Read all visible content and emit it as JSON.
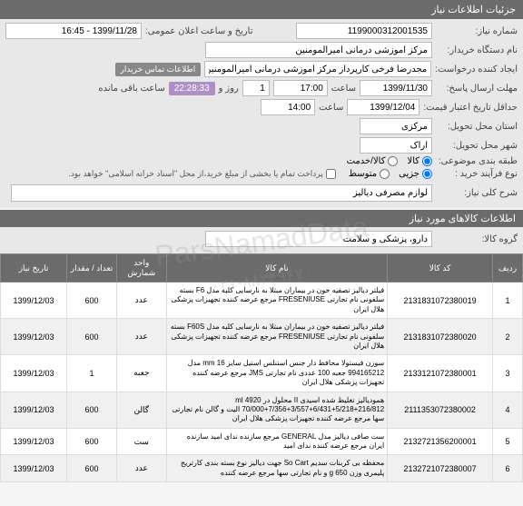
{
  "header": {
    "title": "جزئیات اطلاعات نیاز"
  },
  "form": {
    "req_no_label": "شماره نیاز:",
    "req_no": "1199000312001535",
    "announce_label": "تاریخ و ساعت اعلان عمومی:",
    "announce": "1399/11/28 - 16:45",
    "buyer_org_label": "نام دستگاه خریدار:",
    "buyer_org": "مرکز آموزشی درمانی امیرالمومنین",
    "creator_label": "ایجاد کننده درخواست:",
    "creator": "مجدرضا فرخی کارپرداز مرکز آموزشی درمانی امیرالمومنین",
    "info_btn": "اطلاعات تماس خریدار",
    "deadline_label": "مهلت ارسال پاسخ:",
    "deadline_to_label": "تا تاریخ:",
    "deadline_date": "1399/11/30",
    "deadline_time_label": "ساعت",
    "deadline_time": "17:00",
    "days_label": "روز و",
    "days": "1",
    "timer": "22:28:33",
    "remain_label": "ساعت باقی مانده",
    "validity_label": "حداقل تاریخ اعتبار قیمت:",
    "validity_to": "تا تاریخ:",
    "validity_date": "1399/12/04",
    "validity_time": "14:00",
    "province_label": "استان محل تحویل:",
    "province": "مرکزی",
    "city_label": "شهر محل تحویل:",
    "city": "اراک",
    "budget_cls_label": "طبقه بندی موضوعی:",
    "budget_opts": {
      "goods": "کالا",
      "service": "کالا/خدمت"
    },
    "proc_type_label": "نوع فرآیند خرید :",
    "proc_opts": {
      "low": "جزیی",
      "med": "متوسط"
    },
    "note": "پرداخت تمام یا بخشی از مبلغ خرید،از محل \"اسناد خزانه اسلامی\" خواهد بود.",
    "desc_label": "شرح کلی نیاز:",
    "desc": "لوازم مصرفی دیالیز"
  },
  "items_header": {
    "title": "اطلاعات کالاهای مورد نیاز"
  },
  "group": {
    "label": "گروه کالا:",
    "value": "دارو، پزشکی و سلامت"
  },
  "table": {
    "headers": {
      "idx": "ردیف",
      "code": "کد کالا",
      "name": "نام کالا",
      "unit": "واحد شمارش",
      "qty": "تعداد / مقدار",
      "date": "تاریخ نیاز"
    },
    "rows": [
      {
        "idx": "1",
        "code": "2131831072380019",
        "name": "فیلتر دیالیز تصفیه خون در بیماران مبتلا به نارسایی کلیه مدل F6 بسته سلفونی نام تجارتی FRESENIUSE مرجع عرضه کننده تجهیزات پزشکی هلال ایران",
        "unit": "عدد",
        "qty": "600",
        "date": "1399/12/03"
      },
      {
        "idx": "2",
        "code": "2131831072380020",
        "name": "فیلتر دیالیز تصفیه خون در بیماران مبتلا به نارسایی کلیه مدل F60S بسته سلفونی نام تجارتی FRESENIUSE مرجع عرضه کننده تجهیزات پزشکی هلال ایران",
        "unit": "عدد",
        "qty": "600",
        "date": "1399/12/03"
      },
      {
        "idx": "3",
        "code": "2133121072380001",
        "name": "سوزن فیستولا محافظ دار جنس استنلس استیل سایز mm 16 مدل 994165212 جعبه 100 عددی نام تجارتی JMS مرجع عرضه کننده تجهیزات پزشکی هلال ایران",
        "unit": "جعبه",
        "qty": "1",
        "date": "1399/12/03"
      },
      {
        "idx": "4",
        "code": "2111353072380002",
        "name": "همودیالیز تغلیظ شده اسیدی II محلول در ml 4920 70/000+7/356+3/557+6/431+5/218+216/812 الیت و گالن نام تجارتی سها مرجع عرضه کننده تجهیزات پزشکی هلال ایران",
        "unit": "گالن",
        "qty": "600",
        "date": "1399/12/03"
      },
      {
        "idx": "5",
        "code": "2132721356200001",
        "name": "ست صافی دیالیز مدل GENERAL مرجع سازنده ندای امید سازنده ایران مرجع عرضه کننده ندای امید",
        "unit": "ست",
        "qty": "600",
        "date": "1399/12/03"
      },
      {
        "idx": "6",
        "code": "2132721072380007",
        "name": "محفظه بی کربنات سدیم So Cart جهت دیالیز نوع بسته بندی کارتریج پلیمری وزن g 650 و نام تجارتی سها مرجع عرضه کننده",
        "unit": "عدد",
        "qty": "600",
        "date": "1399/12/03"
      }
    ]
  },
  "watermark": {
    "main": "ParsNamadData",
    "sub": "۰۲۱-۸۸۳۴۹۶۷۰"
  }
}
